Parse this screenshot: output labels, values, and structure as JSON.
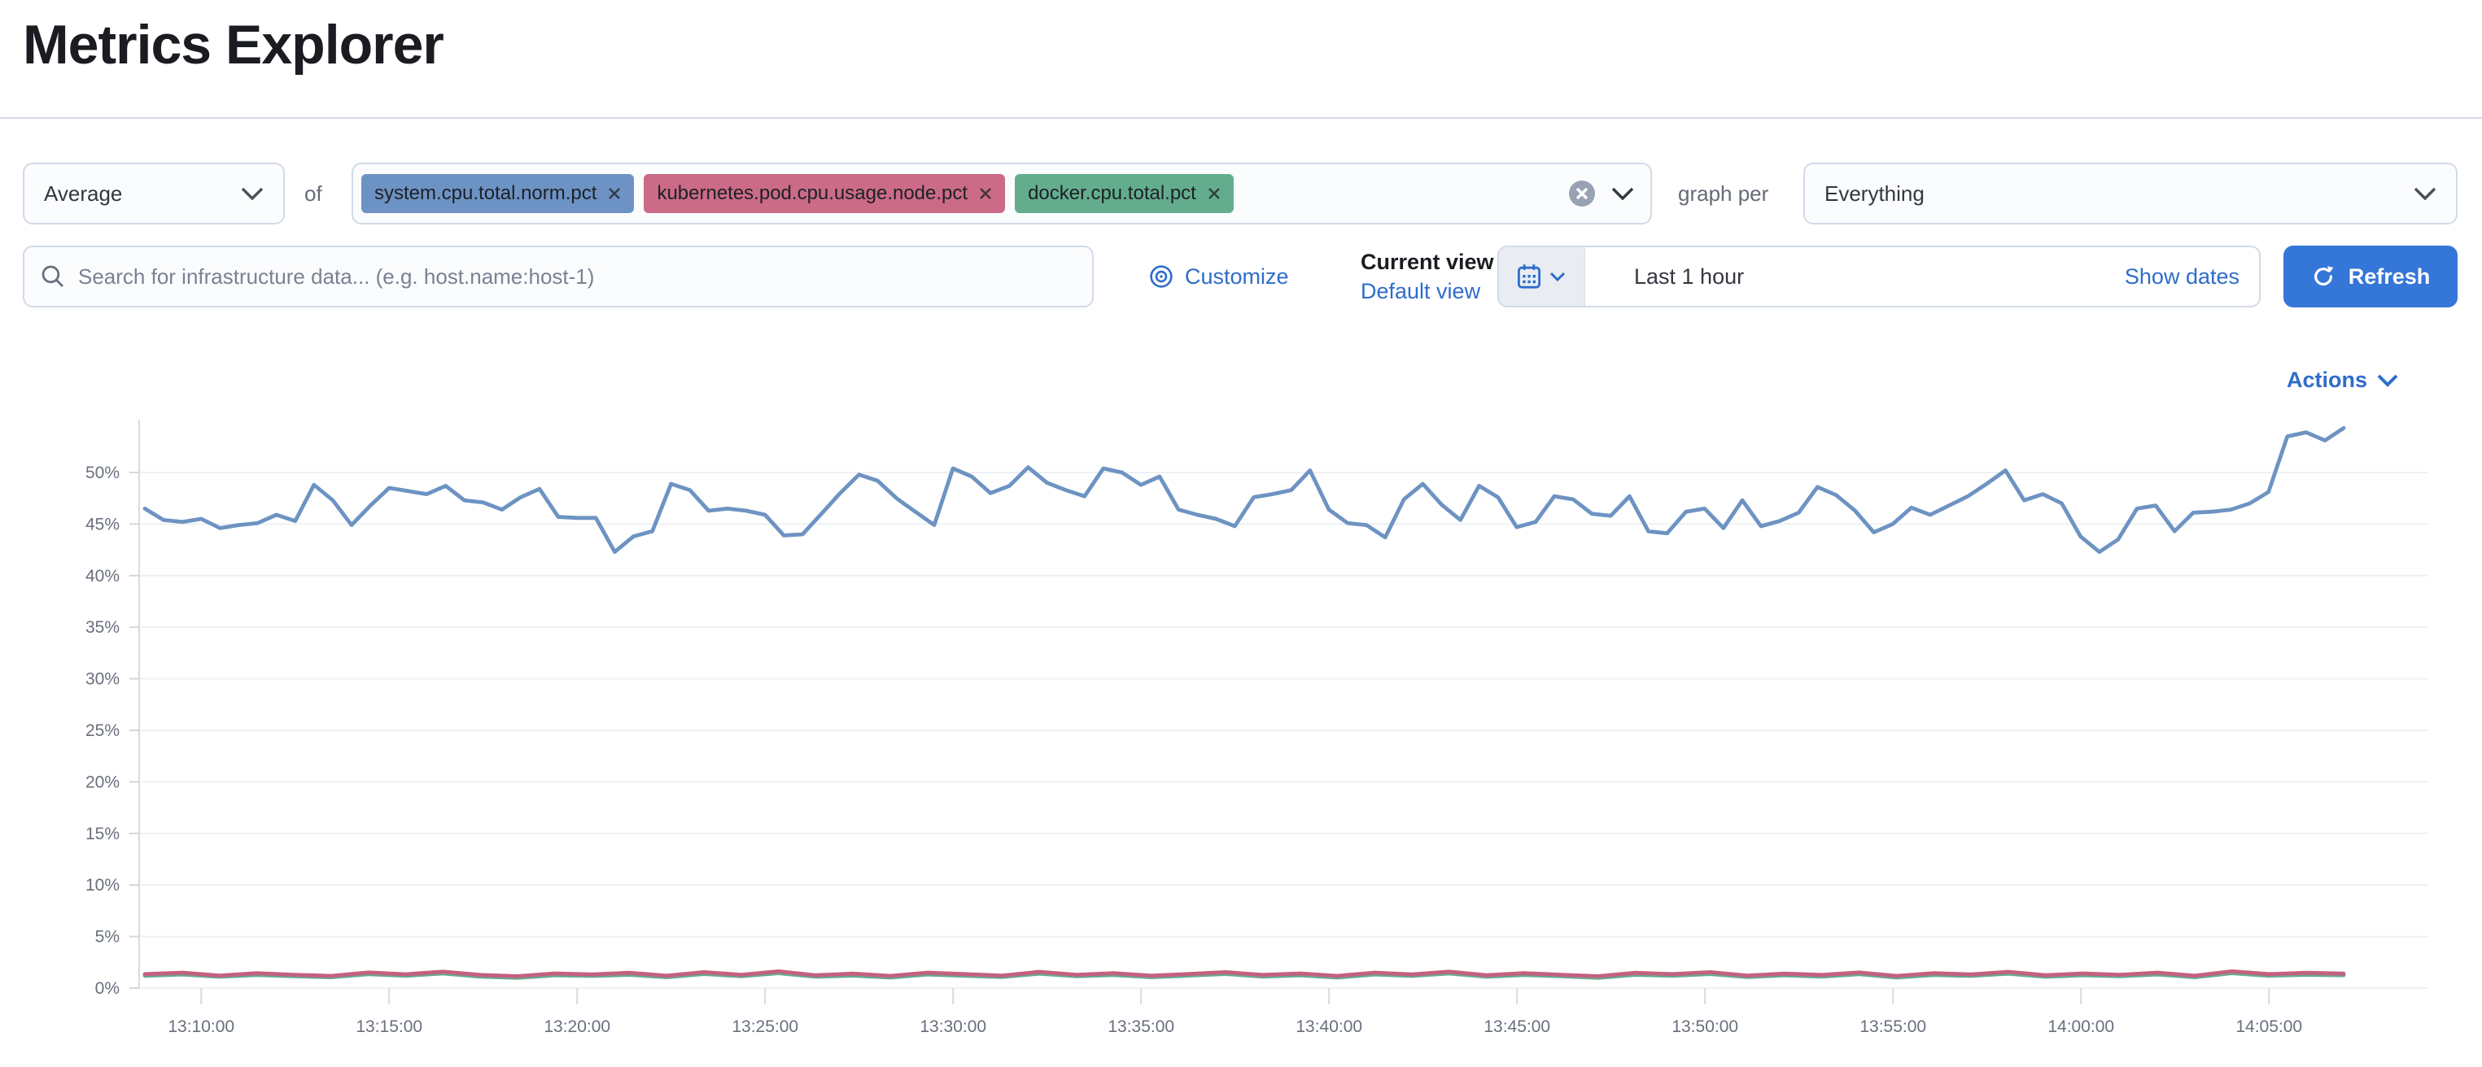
{
  "page": {
    "title": "Metrics Explorer"
  },
  "toolbar": {
    "aggregation_value": "Average",
    "of_label": "of",
    "metrics": [
      {
        "label": "system.cpu.total.norm.pct",
        "color": "#6d93c4"
      },
      {
        "label": "kubernetes.pod.cpu.usage.node.pct",
        "color": "#cb6b87"
      },
      {
        "label": "docker.cpu.total.pct",
        "color": "#63ad8e"
      }
    ],
    "graph_per_label": "graph per",
    "group_by_value": "Everything"
  },
  "search": {
    "placeholder": "Search for infrastructure data... (e.g. host.name:host-1)"
  },
  "views": {
    "customize": "Customize",
    "current": "Current view",
    "default": "Default view"
  },
  "time": {
    "range": "Last 1 hour",
    "show_dates": "Show dates",
    "refresh": "Refresh"
  },
  "actions": {
    "label": "Actions"
  },
  "colors": {
    "primary_link": "#2e6dc9",
    "primary_button": "#3576d9",
    "badge_blue": "#6d93c4",
    "badge_pink": "#cb6b87",
    "badge_green": "#63ad8e",
    "line_blue": "#6d93c2",
    "line_pink": "#c4617f",
    "line_green": "#63ad8e"
  },
  "chart_data": {
    "type": "line",
    "unit": "%",
    "x_start": "13:08:30",
    "x_interval_seconds": 30,
    "x_tick_labels": [
      "13:10:00",
      "13:15:00",
      "13:20:00",
      "13:25:00",
      "13:30:00",
      "13:35:00",
      "13:40:00",
      "13:45:00",
      "13:50:00",
      "13:55:00",
      "14:00:00",
      "14:05:00"
    ],
    "y_ticks": [
      "0%",
      "5%",
      "10%",
      "15%",
      "20%",
      "25%",
      "30%",
      "35%",
      "40%",
      "45%",
      "50%"
    ],
    "ylim": [
      0,
      56
    ],
    "grid": "horizontal",
    "legend": "none",
    "series": [
      {
        "name": "system.cpu.total.norm.pct",
        "color": "#6d93c2",
        "values": [
          46.5,
          45.4,
          45.2,
          45.5,
          44.6,
          44.9,
          45.1,
          45.9,
          45.3,
          48.8,
          47.3,
          44.9,
          46.8,
          48.5,
          48.2,
          47.9,
          48.7,
          47.3,
          47.1,
          46.4,
          47.6,
          48.4,
          45.7,
          45.6,
          45.6,
          42.3,
          43.8,
          44.3,
          48.9,
          48.3,
          46.3,
          46.5,
          46.3,
          45.9,
          43.9,
          44.0,
          46.0,
          48.0,
          49.8,
          49.2,
          47.5,
          46.2,
          44.9,
          50.4,
          49.6,
          48.0,
          48.7,
          50.5,
          49.0,
          48.3,
          47.7,
          50.4,
          50.0,
          48.8,
          49.6,
          46.4,
          45.9,
          45.5,
          44.8,
          47.6,
          47.9,
          48.3,
          50.2,
          46.4,
          45.1,
          44.9,
          43.7,
          47.4,
          48.9,
          46.9,
          45.4,
          48.7,
          47.6,
          44.7,
          45.2,
          47.7,
          47.4,
          46.0,
          45.8,
          47.7,
          44.3,
          44.1,
          46.2,
          46.5,
          44.6,
          47.3,
          44.8,
          45.3,
          46.1,
          48.6,
          47.8,
          46.3,
          44.2,
          45.0,
          46.6,
          45.9,
          46.8,
          47.7,
          48.9,
          50.2,
          47.3,
          47.9,
          47.0,
          43.8,
          42.3,
          43.5,
          46.5,
          46.8,
          44.3,
          46.1,
          46.2,
          46.4,
          47.0,
          48.1,
          53.5,
          53.9,
          53.1,
          54.3
        ]
      },
      {
        "name": "kubernetes.pod.cpu.usage.node.pct",
        "color": "#c4617f",
        "values": [
          1.35,
          1.5,
          1.22,
          1.45,
          1.3,
          1.18,
          1.52,
          1.34,
          1.6,
          1.28,
          1.15,
          1.42,
          1.33,
          1.48,
          1.2,
          1.55,
          1.3,
          1.62,
          1.25,
          1.4,
          1.18,
          1.5,
          1.35,
          1.22,
          1.58,
          1.3,
          1.45,
          1.2,
          1.38,
          1.55,
          1.28,
          1.42,
          1.18,
          1.5,
          1.32,
          1.6,
          1.25,
          1.45,
          1.3,
          1.15,
          1.48,
          1.35,
          1.55,
          1.22,
          1.4,
          1.28,
          1.52,
          1.18,
          1.45,
          1.32,
          1.58,
          1.25,
          1.42,
          1.3,
          1.5,
          1.2,
          1.62,
          1.35,
          1.48,
          1.4
        ]
      },
      {
        "name": "docker.cpu.total.pct",
        "color": "#63ad8e",
        "values": [
          1.2,
          1.32,
          1.1,
          1.28,
          1.15,
          1.05,
          1.35,
          1.2,
          1.42,
          1.12,
          1.0,
          1.25,
          1.18,
          1.3,
          1.05,
          1.38,
          1.15,
          1.45,
          1.1,
          1.22,
          1.02,
          1.32,
          1.2,
          1.08,
          1.4,
          1.15,
          1.28,
          1.05,
          1.22,
          1.38,
          1.12,
          1.25,
          1.02,
          1.32,
          1.18,
          1.42,
          1.1,
          1.28,
          1.15,
          1.0,
          1.3,
          1.2,
          1.38,
          1.08,
          1.25,
          1.12,
          1.35,
          1.02,
          1.28,
          1.18,
          1.4,
          1.1,
          1.25,
          1.15,
          1.32,
          1.05,
          1.45,
          1.2,
          1.3,
          1.25
        ]
      }
    ]
  }
}
